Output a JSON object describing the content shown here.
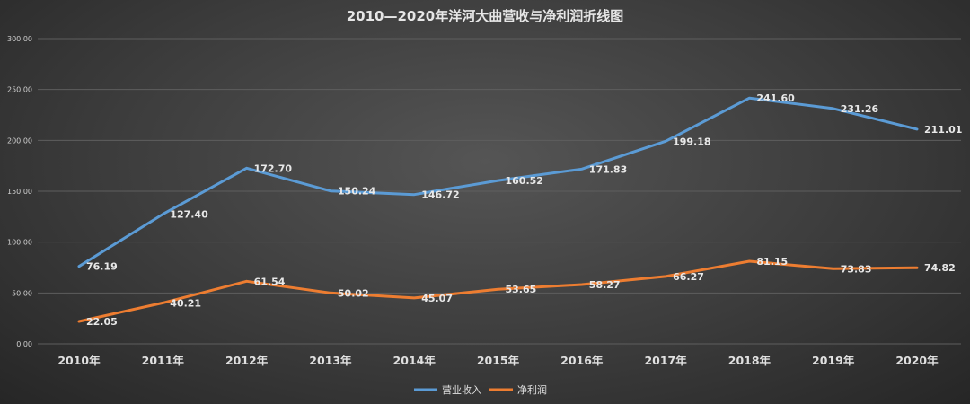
{
  "chart_data": {
    "type": "line",
    "title": "2010—2020年洋河大曲营收与净利润折线图",
    "categories": [
      "2010年",
      "2011年",
      "2012年",
      "2013年",
      "2014年",
      "2015年",
      "2016年",
      "2017年",
      "2018年",
      "2019年",
      "2020年"
    ],
    "ylim": [
      0,
      300
    ],
    "yticks": [
      "0.00",
      "50.00",
      "100.00",
      "150.00",
      "200.00",
      "250.00",
      "300.00"
    ],
    "grid": true,
    "legend_position": "bottom",
    "series": [
      {
        "name": "营业收入",
        "color": "#5b9bd5",
        "values": [
          76.19,
          127.4,
          172.7,
          150.24,
          146.72,
          160.52,
          171.83,
          199.18,
          241.6,
          231.26,
          211.01
        ],
        "labels": [
          "76.19",
          "127.40",
          "172.70",
          "150.24",
          "146.72",
          "160.52",
          "171.83",
          "199.18",
          "241.60",
          "231.26",
          "211.01"
        ]
      },
      {
        "name": "净利润",
        "color": "#ed7d31",
        "values": [
          22.05,
          40.21,
          61.54,
          50.02,
          45.07,
          53.65,
          58.27,
          66.27,
          81.15,
          73.83,
          74.82
        ],
        "labels": [
          "22.05",
          "40.21",
          "61.54",
          "50.02",
          "45.07",
          "53.65",
          "58.27",
          "66.27",
          "81.15",
          "73.83",
          "74.82"
        ]
      }
    ]
  }
}
